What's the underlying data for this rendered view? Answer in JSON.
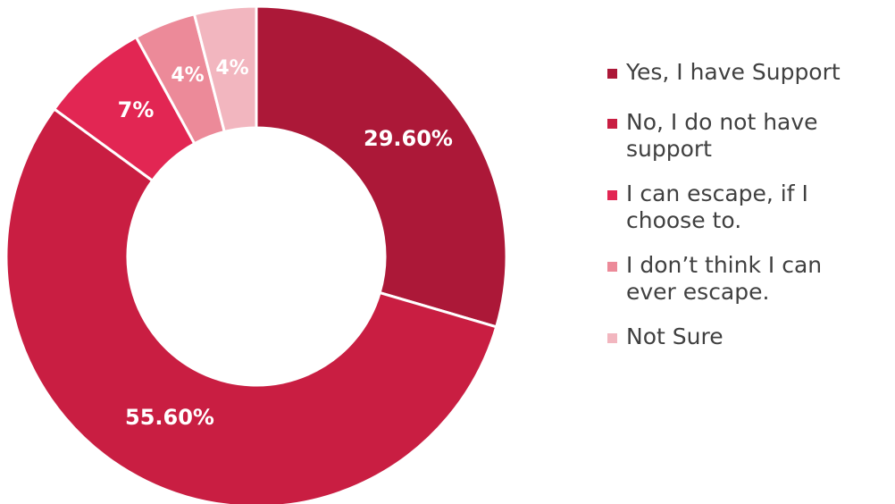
{
  "chart_data": {
    "type": "pie",
    "donut": true,
    "legend_position": "right",
    "slices": [
      {
        "label": "Yes, I have Support",
        "value": 29.6,
        "display": "29.60%",
        "color": "#AC1838"
      },
      {
        "label": "No, I do not have support",
        "value": 55.6,
        "display": "55.60%",
        "color": "#C91E42"
      },
      {
        "label": "I can escape, if I choose to.",
        "value": 7,
        "display": "7%",
        "color": "#E22653"
      },
      {
        "label": "I don’t think I can ever escape.",
        "value": 4,
        "display": "4%",
        "color": "#EC8A99"
      },
      {
        "label": "Not Sure",
        "value": 4,
        "display": "4%",
        "color": "#F2B6BF"
      }
    ]
  }
}
